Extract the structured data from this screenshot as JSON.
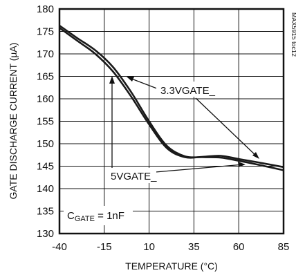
{
  "chart_data": {
    "type": "line",
    "xlabel": "TEMPERATURE (°C)",
    "ylabel": "GATE DISCHARGE CURRENT (µA)",
    "xlim": [
      -40,
      85
    ],
    "ylim": [
      130,
      180
    ],
    "xticks": [
      -40,
      -15,
      10,
      35,
      60,
      85
    ],
    "yticks": [
      130,
      135,
      140,
      145,
      150,
      155,
      160,
      165,
      170,
      175,
      180
    ],
    "grid": true,
    "side_note": "MAX5915 toc12",
    "annotations": {
      "label_3v3": "3.3VGATE_",
      "label_5v": "5VGATE_",
      "cgate_main": "C",
      "cgate_sub": "GATE",
      "cgate_value": " = 1nF"
    },
    "series": [
      {
        "x": [
          -40,
          -30,
          -20,
          -10,
          0,
          10,
          20,
          30,
          40,
          50,
          60,
          70,
          85
        ],
        "values": [
          176.3,
          173.5,
          170.8,
          167.0,
          161.5,
          155.0,
          149.5,
          147.2,
          147.0,
          146.9,
          146.2,
          145.4,
          144.1
        ]
      },
      {
        "x": [
          -40,
          -30,
          -20,
          -10,
          0,
          10,
          20,
          30,
          40,
          50,
          60,
          70,
          85
        ],
        "values": [
          175.8,
          172.9,
          170.0,
          166.0,
          160.5,
          154.3,
          149.0,
          147.0,
          147.1,
          147.3,
          146.6,
          145.9,
          144.8
        ]
      }
    ]
  }
}
